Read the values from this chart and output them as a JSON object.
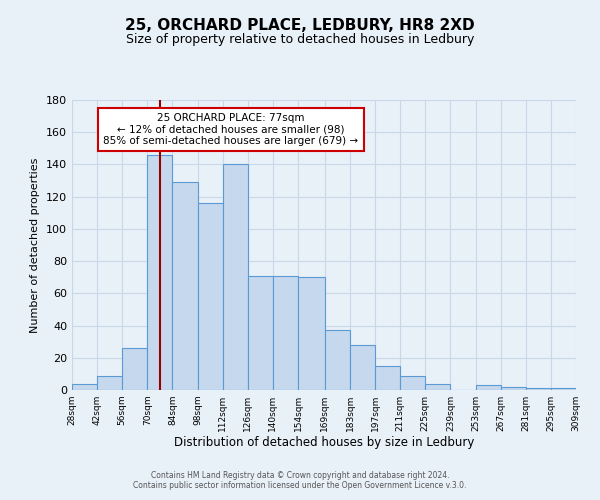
{
  "title": "25, ORCHARD PLACE, LEDBURY, HR8 2XD",
  "subtitle": "Size of property relative to detached houses in Ledbury",
  "xlabel": "Distribution of detached houses by size in Ledbury",
  "ylabel": "Number of detached properties",
  "footer_lines": [
    "Contains HM Land Registry data © Crown copyright and database right 2024.",
    "Contains public sector information licensed under the Open Government Licence v.3.0."
  ],
  "bar_edges": [
    28,
    42,
    56,
    70,
    84,
    98,
    112,
    126,
    140,
    154,
    169,
    183,
    197,
    211,
    225,
    239,
    253,
    267,
    281,
    295,
    309
  ],
  "bar_heights": [
    4,
    9,
    26,
    146,
    129,
    116,
    140,
    71,
    71,
    70,
    37,
    28,
    15,
    9,
    4,
    0,
    3,
    2,
    1,
    1
  ],
  "tick_labels": [
    "28sqm",
    "42sqm",
    "56sqm",
    "70sqm",
    "84sqm",
    "98sqm",
    "112sqm",
    "126sqm",
    "140sqm",
    "154sqm",
    "169sqm",
    "183sqm",
    "197sqm",
    "211sqm",
    "225sqm",
    "239sqm",
    "253sqm",
    "267sqm",
    "281sqm",
    "295sqm",
    "309sqm"
  ],
  "bar_color": "#c5d8ed",
  "bar_edge_color": "#5b9bd5",
  "grid_color": "#c8d8e8",
  "bg_color": "#e8f0f8",
  "red_line_x": 77,
  "annotation_line1": "25 ORCHARD PLACE: 77sqm",
  "annotation_line2": "← 12% of detached houses are smaller (98)",
  "annotation_line3": "85% of semi-detached houses are larger (679) →",
  "annotation_box_color": "#ffffff",
  "annotation_box_edge": "#cc0000",
  "ylim": [
    0,
    180
  ],
  "yticks": [
    0,
    20,
    40,
    60,
    80,
    100,
    120,
    140,
    160,
    180
  ]
}
